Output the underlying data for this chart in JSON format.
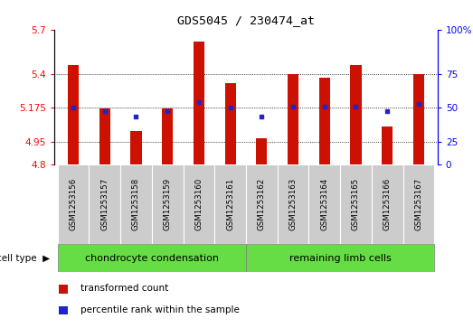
{
  "title": "GDS5045 / 230474_at",
  "samples": [
    "GSM1253156",
    "GSM1253157",
    "GSM1253158",
    "GSM1253159",
    "GSM1253160",
    "GSM1253161",
    "GSM1253162",
    "GSM1253163",
    "GSM1253164",
    "GSM1253165",
    "GSM1253166",
    "GSM1253167"
  ],
  "red_values": [
    5.46,
    5.17,
    5.02,
    5.17,
    5.62,
    5.34,
    4.97,
    5.4,
    5.38,
    5.46,
    5.05,
    5.4
  ],
  "blue_values": [
    5.175,
    5.155,
    5.12,
    5.155,
    5.215,
    5.175,
    5.12,
    5.185,
    5.185,
    5.185,
    5.155,
    5.205
  ],
  "group1_label": "chondrocyte condensation",
  "group2_label": "remaining limb cells",
  "group1_count": 6,
  "group2_count": 6,
  "ymin": 4.8,
  "ymax": 5.7,
  "yticks_left": [
    4.8,
    4.95,
    5.175,
    5.4,
    5.7
  ],
  "ytick_labels_left": [
    "4.8",
    "4.95",
    "5.175",
    "5.4",
    "5.7"
  ],
  "right_tick_positions": [
    4.8,
    4.95,
    5.175,
    5.4,
    5.7
  ],
  "right_tick_labels": [
    "0",
    "25",
    "50",
    "75",
    "100%"
  ],
  "grid_vals": [
    4.95,
    5.175,
    5.4
  ],
  "bar_color": "#cc1100",
  "blue_color": "#2222cc",
  "group_color": "#66dd44",
  "sample_bg": "#cccccc",
  "legend_red_label": "transformed count",
  "legend_blue_label": "percentile rank within the sample",
  "cell_type_label": "cell type"
}
